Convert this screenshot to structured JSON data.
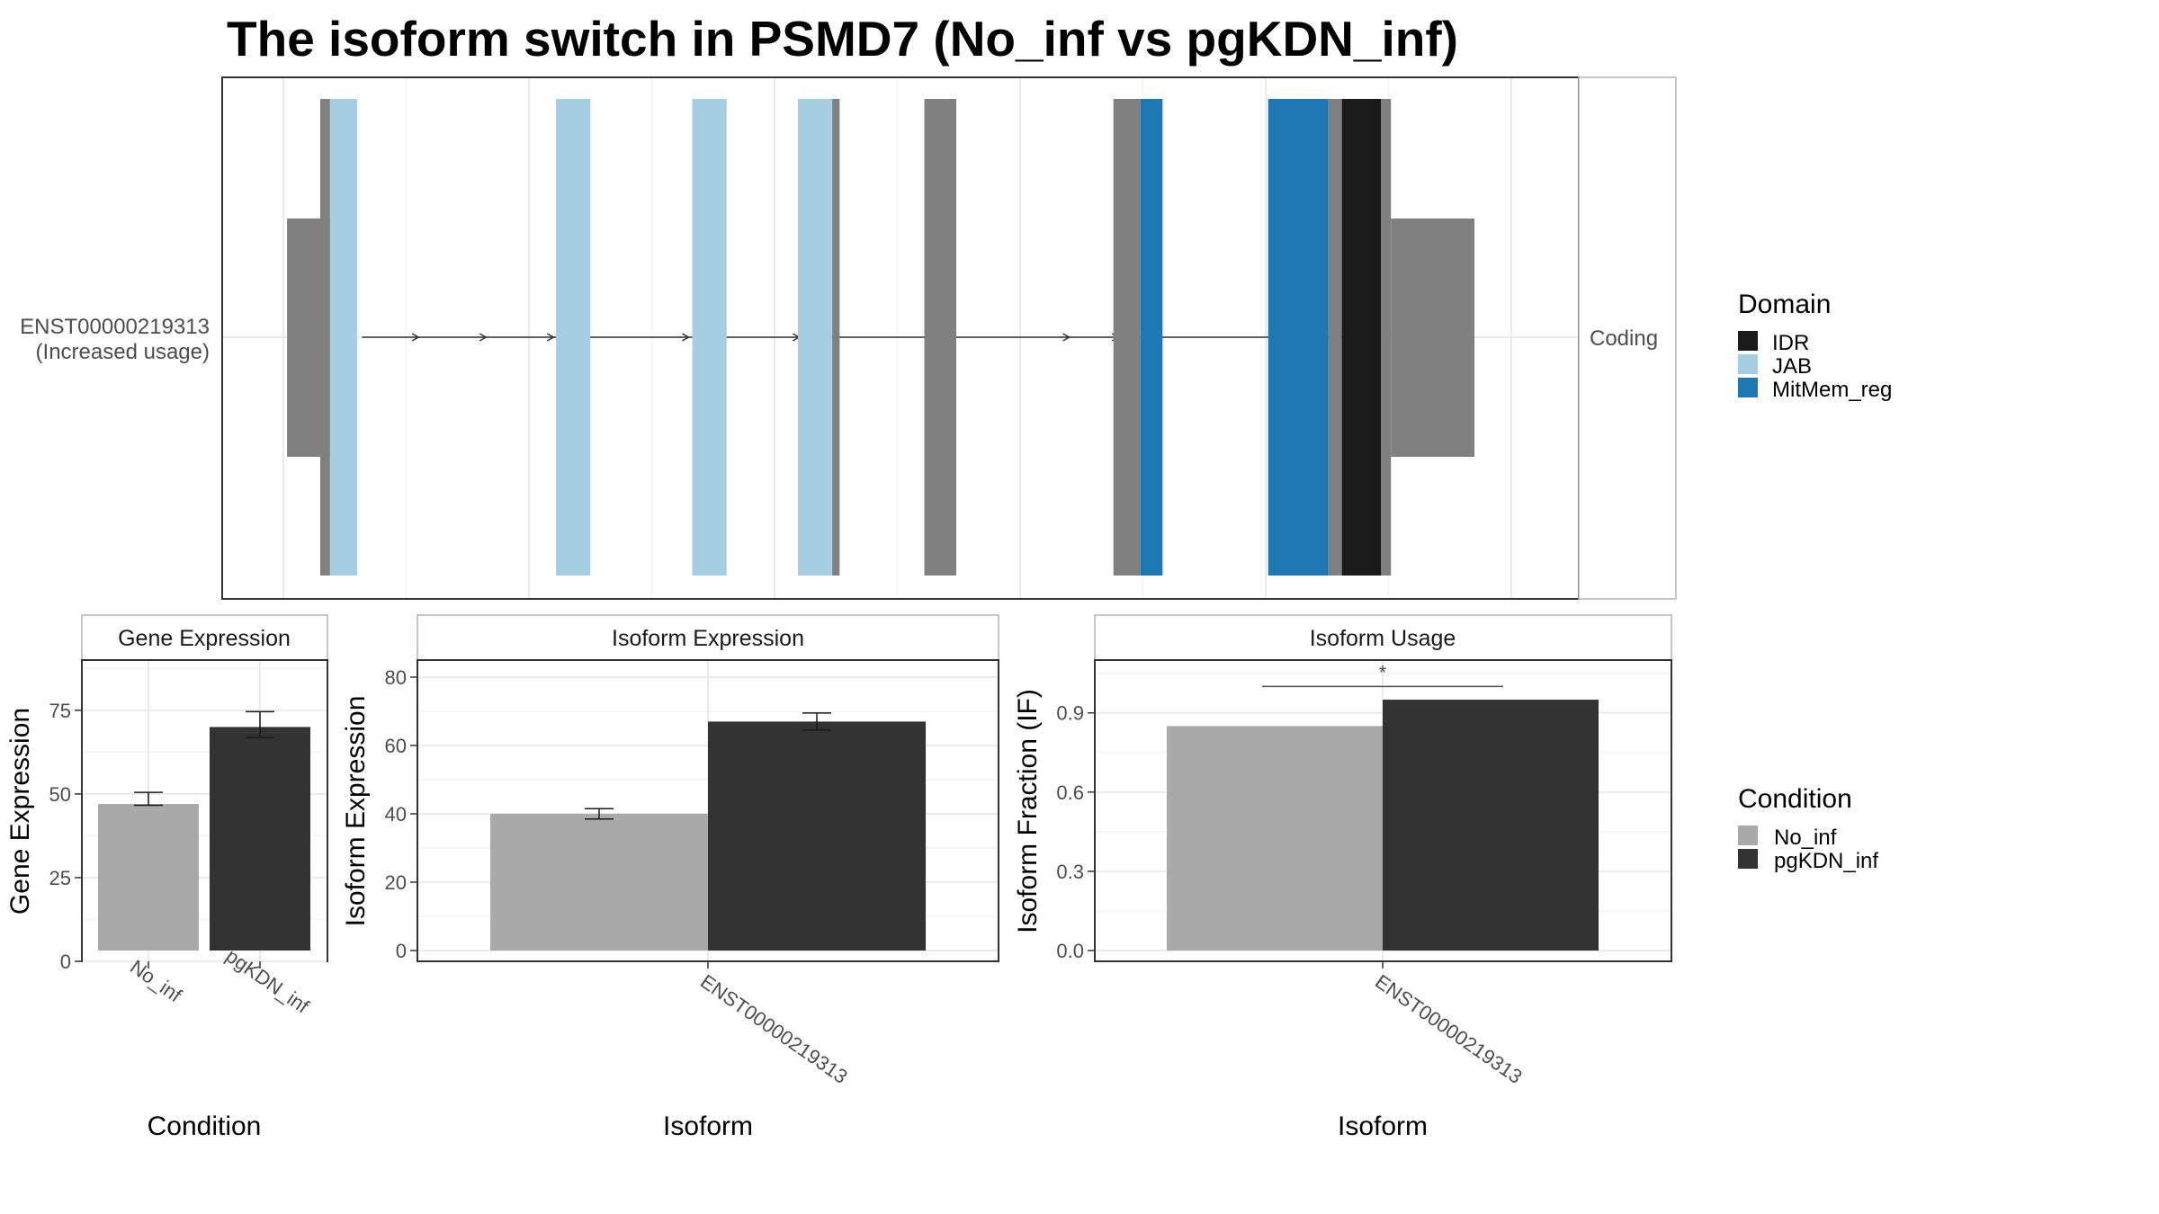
{
  "title": "The isoform switch in PSMD7 (No_inf vs pgKDN_inf)",
  "colors": {
    "no_inf": "#a9a9a9",
    "pgkdn_inf": "#333333",
    "utr": "#808080",
    "IDR": "#1a1a1a",
    "JAB": "#a6cee3",
    "MitMem_reg": "#1f78b4"
  },
  "chart_data": [
    {
      "type": "transcript_structure",
      "isoform_label_line1": "ENST00000219313",
      "isoform_label_line2": "(Increased usage)",
      "facet_label": "Coding",
      "x_range": [
        0,
        1000
      ],
      "exons": [
        {
          "start": 3,
          "end": 43,
          "kind": "utr"
        },
        {
          "start": 43,
          "end": 64,
          "kind": "cds",
          "domain": "JAB"
        },
        {
          "start": 258,
          "end": 288,
          "kind": "cds",
          "domain": "JAB"
        },
        {
          "start": 374,
          "end": 404,
          "kind": "cds",
          "domain": "JAB"
        },
        {
          "start": 464,
          "end": 499,
          "kind": "cds",
          "domain": "JAB"
        },
        {
          "start": 576,
          "end": 603,
          "kind": "cds",
          "domain": ""
        },
        {
          "start": 737,
          "end": 778,
          "kind": "cds",
          "domain": "MitMem_reg"
        },
        {
          "start": 868,
          "end": 1000,
          "kind": "cds",
          "domain": "MitMem_reg"
        }
      ],
      "domain_legend_title": "Domain",
      "domains": [
        "IDR",
        "JAB",
        "MitMem_reg"
      ]
    },
    {
      "type": "bar",
      "panel": "Gene Expression",
      "categories": [
        "No_inf",
        "pgKDN_inf"
      ],
      "values": [
        47,
        70
      ],
      "errors": [
        2,
        4
      ],
      "xlabel": "Condition",
      "ylabel": "Gene Expression",
      "ylim": [
        0,
        90
      ],
      "yticks": [
        0,
        25,
        50,
        75
      ]
    },
    {
      "type": "bar",
      "panel": "Isoform Expression",
      "categories": [
        "ENST00000219313"
      ],
      "series": [
        {
          "name": "No_inf",
          "values": [
            40
          ],
          "errors": [
            1.5
          ]
        },
        {
          "name": "pgKDN_inf",
          "values": [
            67
          ],
          "errors": [
            2.5
          ]
        }
      ],
      "xlabel": "Isoform",
      "ylabel": "Isoform Expression",
      "ylim": [
        0,
        85
      ],
      "yticks": [
        0,
        20,
        40,
        60,
        80
      ]
    },
    {
      "type": "bar",
      "panel": "Isoform Usage",
      "categories": [
        "ENST00000219313"
      ],
      "series": [
        {
          "name": "No_inf",
          "values": [
            0.85
          ]
        },
        {
          "name": "pgKDN_inf",
          "values": [
            0.95
          ]
        }
      ],
      "significance": "*",
      "xlabel": "Isoform",
      "ylabel": "Isoform Fraction (IF)",
      "ylim": [
        0,
        1.1
      ],
      "yticks": [
        "0.0",
        "0.3",
        "0.6",
        "0.9"
      ]
    }
  ],
  "legends": {
    "domain": {
      "title": "Domain",
      "items": [
        "IDR",
        "JAB",
        "MitMem_reg"
      ]
    },
    "condition": {
      "title": "Condition",
      "items": [
        "No_inf",
        "pgKDN_inf"
      ]
    }
  }
}
